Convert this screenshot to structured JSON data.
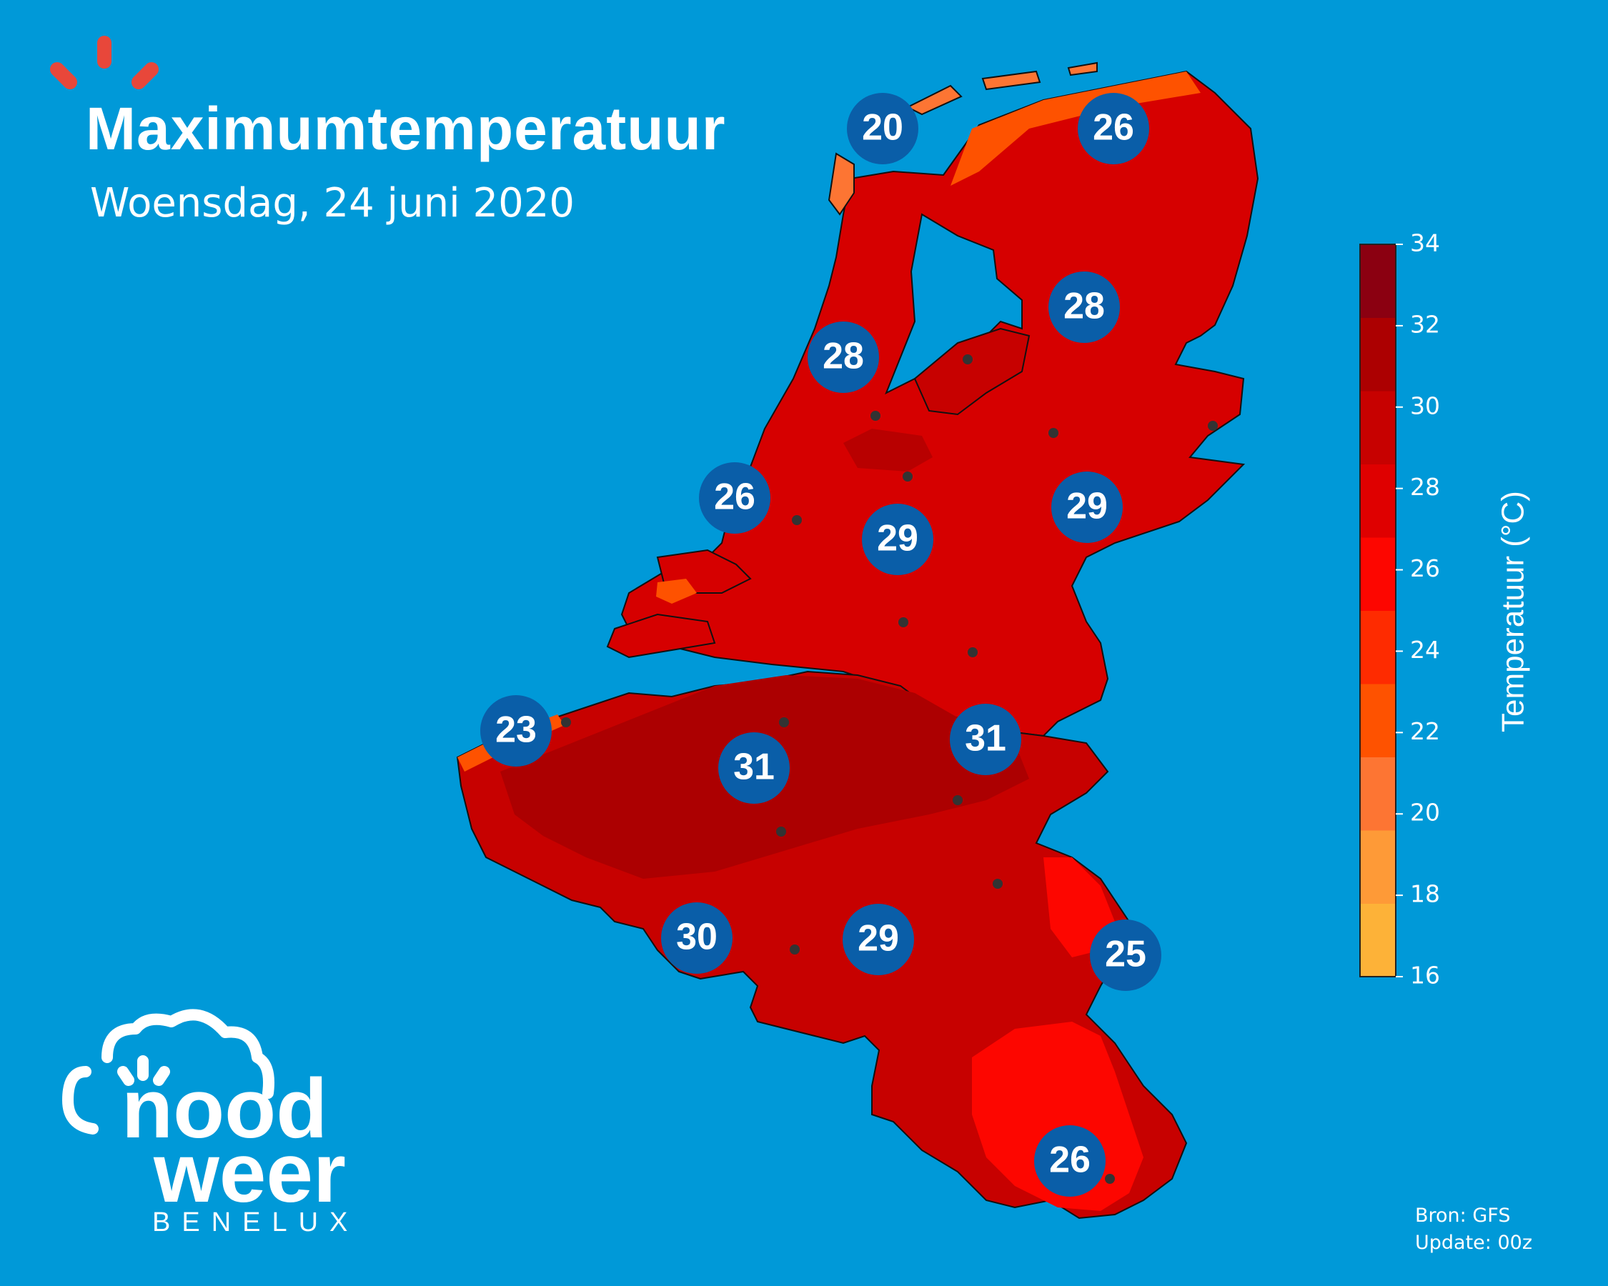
{
  "header": {
    "title": "Maximumtemperatuur",
    "subtitle": "Woensdag, 24 juni 2020"
  },
  "colorbar": {
    "label": "Temperatuur (°C)",
    "ticks": [
      "16",
      "18",
      "20",
      "22",
      "24",
      "26",
      "28",
      "30",
      "32",
      "34"
    ],
    "colors": [
      "#fdb238",
      "#fe9a37",
      "#fd7533",
      "#fe5200",
      "#fe2b00",
      "#fd0600",
      "#df0000",
      "#c70100",
      "#ac0001",
      "#8b0011"
    ]
  },
  "stations": [
    {
      "id": "den-helder-north",
      "value": "20",
      "color": "#0a5ea8"
    },
    {
      "id": "groningen-coast",
      "value": "26",
      "color": "#0a5ea8"
    },
    {
      "id": "drenthe",
      "value": "28",
      "color": "#0a5ea8"
    },
    {
      "id": "noord-holland",
      "value": "28",
      "color": "#0a5ea8"
    },
    {
      "id": "zuid-holland",
      "value": "26",
      "color": "#0a5ea8"
    },
    {
      "id": "twente",
      "value": "29",
      "color": "#0a5ea8"
    },
    {
      "id": "utrecht-brabant",
      "value": "29",
      "color": "#0a5ea8"
    },
    {
      "id": "belgian-coast",
      "value": "23",
      "color": "#0a5ea8"
    },
    {
      "id": "flanders",
      "value": "31",
      "color": "#0a5ea8"
    },
    {
      "id": "limburg",
      "value": "31",
      "color": "#0a5ea8"
    },
    {
      "id": "hainaut",
      "value": "30",
      "color": "#0a5ea8"
    },
    {
      "id": "namur",
      "value": "29",
      "color": "#0a5ea8"
    },
    {
      "id": "ardennes-east",
      "value": "25",
      "color": "#0a5ea8"
    },
    {
      "id": "luxembourg",
      "value": "26",
      "color": "#0a5ea8"
    }
  ],
  "footer": {
    "source": "Bron: GFS",
    "update": "Update: 00z"
  },
  "brand": {
    "line1": "nood",
    "line2": "weer",
    "line3": "BENELUX",
    "accent_color": "#e8473a"
  },
  "background_color": "#0099d8"
}
